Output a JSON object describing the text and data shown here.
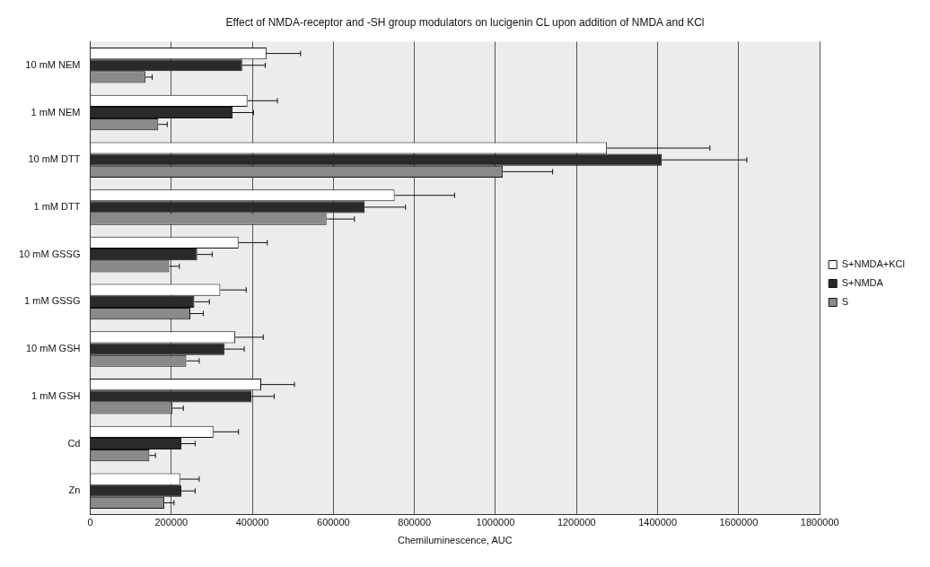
{
  "chart_data": {
    "type": "bar",
    "orientation": "horizontal",
    "title": "Effect of NMDA-receptor and -SH group modulators on lucigenin CL upon addition of NMDA and KCl",
    "xlabel": "Chemiluminescence, AUC",
    "categories": [
      "10 mM NEM",
      "1 mM NEM",
      "10 mM DTT",
      "1 mM DTT",
      "10 mM GSSG",
      "1 mM GSSG",
      "10 mM GSH",
      "1 mM GSH",
      "Cd",
      "Zn"
    ],
    "series": [
      {
        "name": "S+NMDA+KCl",
        "color": "#ffffff",
        "values": [
          435000,
          388000,
          1275000,
          751000,
          366000,
          321000,
          358000,
          422000,
          304000,
          222000
        ],
        "errors": [
          [
            435000,
            519000
          ],
          [
            388000,
            462000
          ],
          [
            1275000,
            1529000
          ],
          [
            751000,
            899000
          ],
          [
            366000,
            437000
          ],
          [
            321000,
            385000
          ],
          [
            358000,
            427000
          ],
          [
            422000,
            504000
          ],
          [
            304000,
            366000
          ],
          [
            222000,
            269000
          ]
        ]
      },
      {
        "name": "S+NMDA",
        "color": "#2a2a2a",
        "values": [
          375000,
          351000,
          1410000,
          677000,
          264000,
          257000,
          331000,
          398000,
          225000,
          225000
        ],
        "errors": [
          [
            375000,
            432000
          ],
          [
            351000,
            403000
          ],
          [
            1410000,
            1620000
          ],
          [
            677000,
            778000
          ],
          [
            264000,
            301000
          ],
          [
            257000,
            294000
          ],
          [
            331000,
            380000
          ],
          [
            398000,
            454000
          ],
          [
            225000,
            259000
          ],
          [
            225000,
            259000
          ]
        ]
      },
      {
        "name": "S",
        "color": "#8a8a8a",
        "values": [
          136000,
          168000,
          1018000,
          583000,
          195000,
          247000,
          237000,
          203000,
          146000,
          183000
        ],
        "errors": [
          [
            136000,
            153000
          ],
          [
            168000,
            190000
          ],
          [
            1018000,
            1141000
          ],
          [
            583000,
            652000
          ],
          [
            195000,
            220000
          ],
          [
            247000,
            279000
          ],
          [
            237000,
            269000
          ],
          [
            203000,
            230000
          ],
          [
            146000,
            161000
          ],
          [
            183000,
            207000
          ]
        ]
      }
    ],
    "xlim": [
      0,
      1800000
    ],
    "xticks": [
      0,
      200000,
      400000,
      600000,
      800000,
      1000000,
      1200000,
      1400000,
      1600000,
      1800000
    ],
    "grid": "x",
    "legend": "right"
  }
}
